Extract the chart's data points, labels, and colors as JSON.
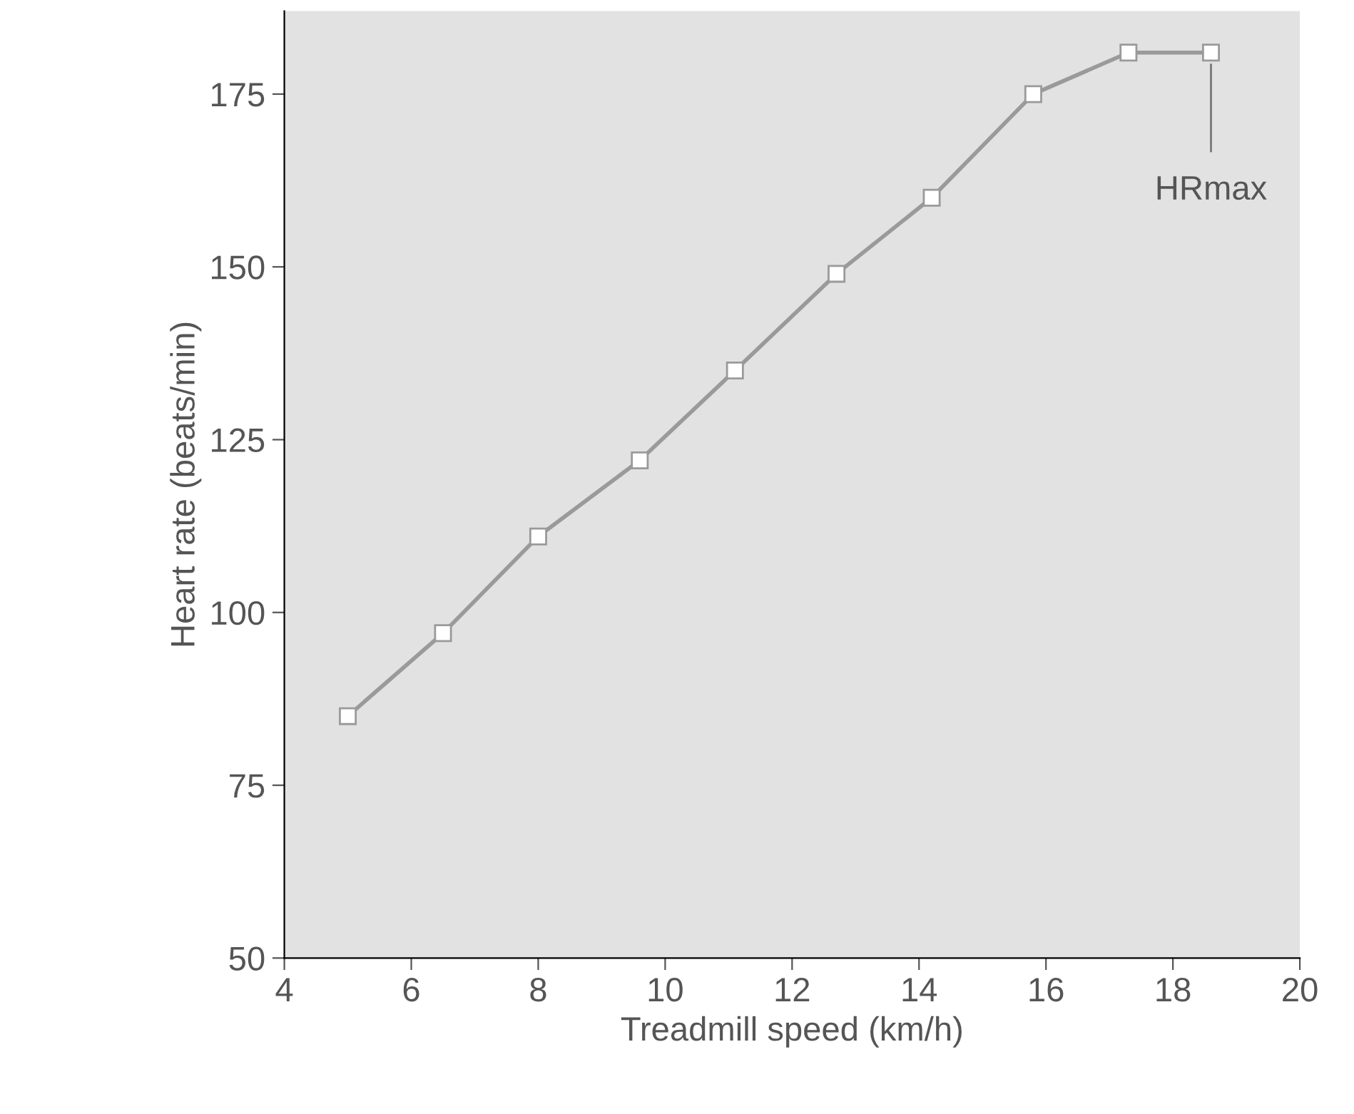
{
  "chart_data": {
    "type": "line",
    "xlabel": "Treadmill speed (km/h)",
    "ylabel": "Heart rate (beats/min)",
    "x": [
      5.0,
      6.5,
      8.0,
      9.6,
      11.1,
      12.7,
      14.2,
      15.8,
      17.3,
      18.6
    ],
    "series": [
      {
        "color": "#9a9a9a",
        "values": [
          85,
          97,
          111,
          122,
          135,
          149,
          160,
          175,
          181,
          181
        ]
      }
    ],
    "xlim": [
      4,
      20
    ],
    "xticks": [
      4,
      6,
      8,
      10,
      12,
      14,
      16,
      18,
      20
    ],
    "ylim": [
      50,
      187
    ],
    "yticks": [
      50,
      75,
      100,
      125,
      150,
      175
    ],
    "annotations": [
      {
        "text": "HRmax",
        "x": 18.6,
        "y": 181
      }
    ],
    "marker": "square",
    "line_style": "solid",
    "grid": false,
    "legend": false
  }
}
